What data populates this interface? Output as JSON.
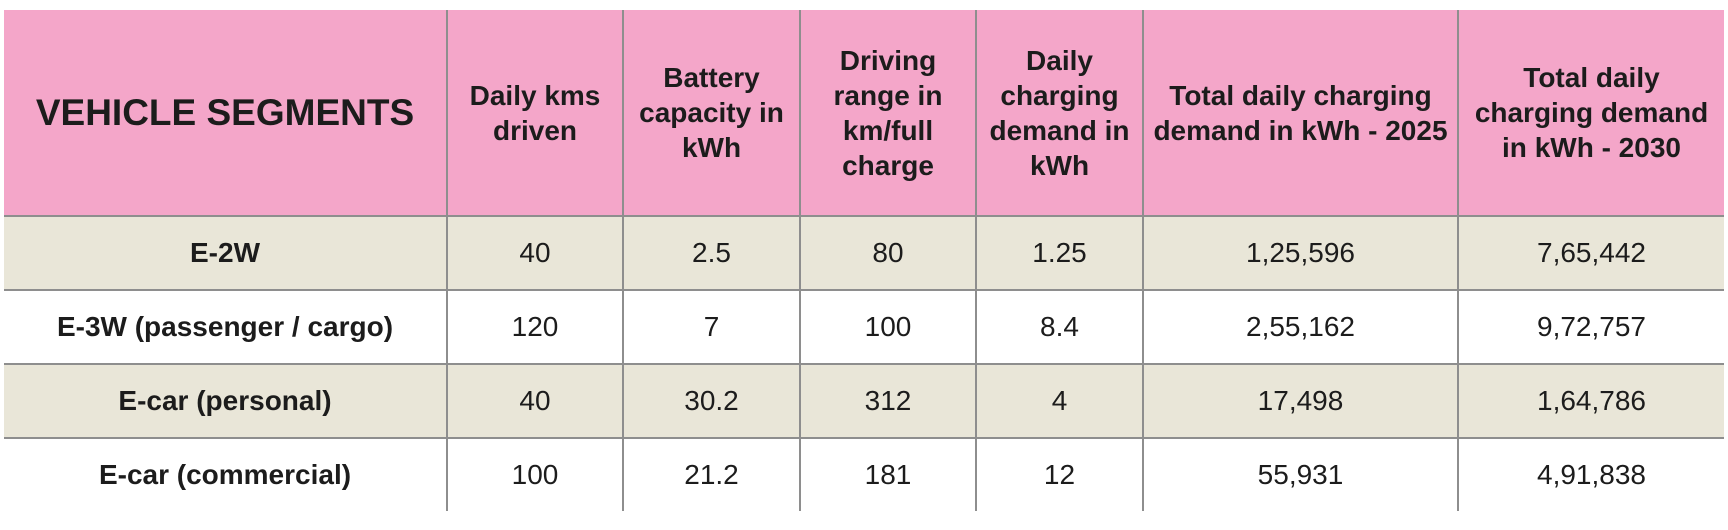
{
  "table": {
    "headers": [
      "VEHICLE SEGMENTS",
      "Daily kms driven",
      "Battery capacity in kWh",
      "Driving range in km/full charge",
      "Daily charging demand in kWh",
      "Total daily charging demand in kWh - 2025",
      "Total daily charging demand in kWh - 2030"
    ],
    "rows": [
      [
        "E-2W",
        "40",
        "2.5",
        "80",
        "1.25",
        "1,25,596",
        "7,65,442"
      ],
      [
        "E-3W (passenger / cargo)",
        "120",
        "7",
        "100",
        "8.4",
        "2,55,162",
        "9,72,757"
      ],
      [
        "E-car (personal)",
        "40",
        "30.2",
        "312",
        "4",
        "17,498",
        "1,64,786"
      ],
      [
        "E-car (commercial)",
        "100",
        "21.2",
        "181",
        "12",
        "55,931",
        "4,91,838"
      ]
    ]
  },
  "colors": {
    "header_bg": "#f4a6c9",
    "alt_row_bg": "#e9e6d8",
    "grid": "#8e8e8e"
  }
}
